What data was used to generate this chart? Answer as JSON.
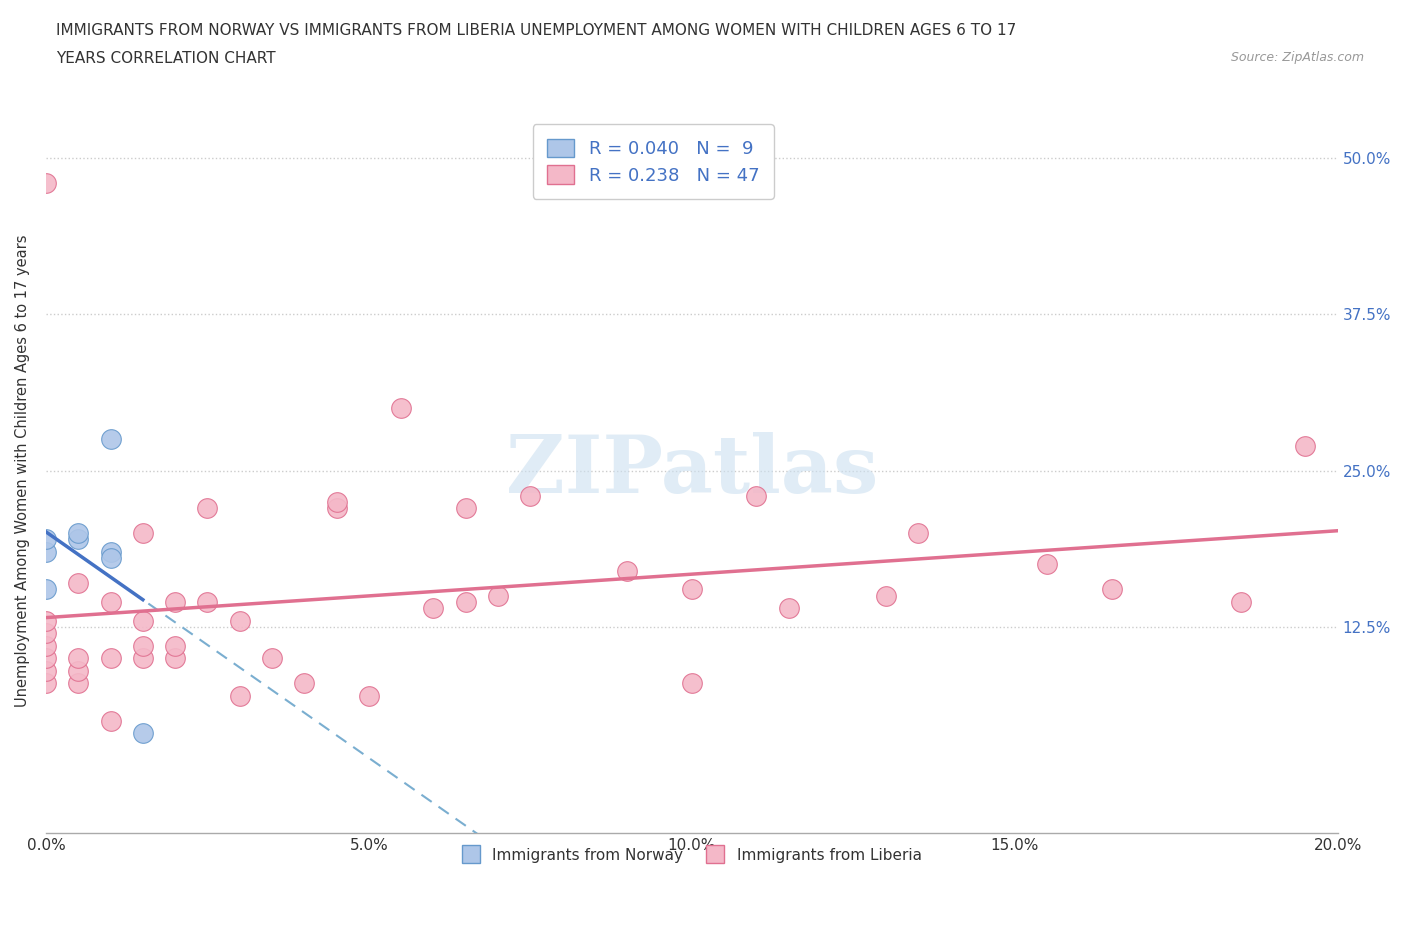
{
  "title_line1": "IMMIGRANTS FROM NORWAY VS IMMIGRANTS FROM LIBERIA UNEMPLOYMENT AMONG WOMEN WITH CHILDREN AGES 6 TO 17",
  "title_line2": "YEARS CORRELATION CHART",
  "source": "Source: ZipAtlas.com",
  "ylabel": "Unemployment Among Women with Children Ages 6 to 17 years",
  "xlim": [
    0.0,
    0.2
  ],
  "ylim": [
    -0.04,
    0.54
  ],
  "xtick_labels": [
    "0.0%",
    "",
    "5.0%",
    "",
    "10.0%",
    "",
    "15.0%",
    "",
    "20.0%"
  ],
  "xtick_vals": [
    0.0,
    0.025,
    0.05,
    0.075,
    0.1,
    0.125,
    0.15,
    0.175,
    0.2
  ],
  "ytick_labels": [
    "12.5%",
    "25.0%",
    "37.5%",
    "50.0%"
  ],
  "ytick_vals": [
    0.125,
    0.25,
    0.375,
    0.5
  ],
  "norway_color": "#aec6e8",
  "liberia_color": "#f4b8c8",
  "norway_edge": "#6699cc",
  "liberia_edge": "#e07090",
  "norway_line_color": "#4472c4",
  "liberia_line_color": "#e07090",
  "norway_dash_color": "#7aaed0",
  "norway_R": 0.04,
  "norway_N": 9,
  "liberia_R": 0.238,
  "liberia_N": 47,
  "norway_x": [
    0.0,
    0.0,
    0.0,
    0.005,
    0.005,
    0.01,
    0.01,
    0.01,
    0.015
  ],
  "norway_y": [
    0.155,
    0.185,
    0.195,
    0.195,
    0.2,
    0.275,
    0.185,
    0.18,
    0.04
  ],
  "liberia_x": [
    0.0,
    0.0,
    0.0,
    0.0,
    0.0,
    0.0,
    0.0,
    0.005,
    0.005,
    0.005,
    0.005,
    0.01,
    0.01,
    0.01,
    0.015,
    0.015,
    0.015,
    0.015,
    0.02,
    0.02,
    0.02,
    0.025,
    0.025,
    0.03,
    0.03,
    0.035,
    0.04,
    0.045,
    0.045,
    0.05,
    0.055,
    0.06,
    0.065,
    0.065,
    0.07,
    0.075,
    0.09,
    0.1,
    0.1,
    0.11,
    0.115,
    0.13,
    0.135,
    0.155,
    0.165,
    0.185,
    0.195
  ],
  "liberia_y": [
    0.08,
    0.09,
    0.1,
    0.11,
    0.12,
    0.13,
    0.48,
    0.08,
    0.09,
    0.1,
    0.16,
    0.05,
    0.1,
    0.145,
    0.1,
    0.11,
    0.13,
    0.2,
    0.1,
    0.11,
    0.145,
    0.145,
    0.22,
    0.07,
    0.13,
    0.1,
    0.08,
    0.22,
    0.225,
    0.07,
    0.3,
    0.14,
    0.145,
    0.22,
    0.15,
    0.23,
    0.17,
    0.08,
    0.155,
    0.23,
    0.14,
    0.15,
    0.2,
    0.175,
    0.155,
    0.145,
    0.27
  ],
  "legend_text_color": "#4472c4",
  "watermark_color": "#cce0f0",
  "bg_color": "#ffffff",
  "grid_color": "#cccccc"
}
